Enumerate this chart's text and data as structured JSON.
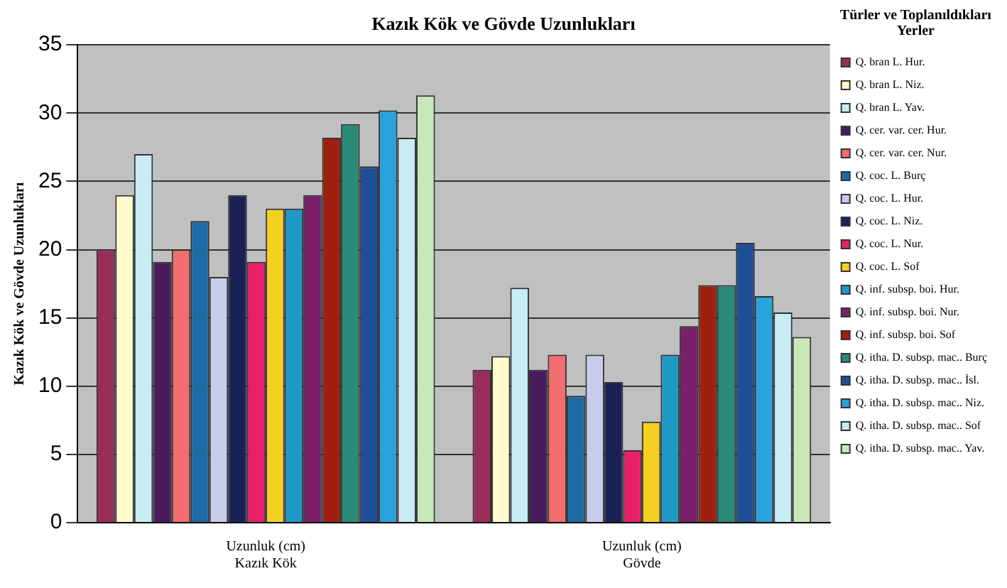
{
  "chart_data": {
    "type": "bar",
    "title": "Kazık Kök ve Gövde Uzunlukları",
    "ylabel": "Kazık Kök ve Gövde Uzunlukları",
    "legend_title": "Türler ve Toplanıldıkları Yerler",
    "categories": [
      "Uzunluk (cm)\nKazık Kök",
      "Uzunluk (cm)\nGövde"
    ],
    "ylim": [
      0,
      35
    ],
    "yticks": [
      0,
      5,
      10,
      15,
      20,
      25,
      30,
      35
    ],
    "grid": "y",
    "legend": "right",
    "series": [
      {
        "name": "Q. bran L. Hur.",
        "color": "#9b2d5a",
        "values": [
          20,
          11.2
        ]
      },
      {
        "name": "Q. bran L. Niz.",
        "color": "#fffbcc",
        "values": [
          24,
          12.2
        ]
      },
      {
        "name": "Q. bran L. Yav.",
        "color": "#c8ecf4",
        "values": [
          27,
          17.2
        ]
      },
      {
        "name": "Q. cer. var. cer. Hur.",
        "color": "#4a1a5e",
        "values": [
          19.1,
          11.2
        ]
      },
      {
        "name": "Q. cer. var. cer. Nur.",
        "color": "#f26d6d",
        "values": [
          20,
          12.3
        ]
      },
      {
        "name": "Q. coc. L. Burç",
        "color": "#1f6aa5",
        "values": [
          22.1,
          9.3
        ]
      },
      {
        "name": "Q. coc. L. Hur.",
        "color": "#c8ccec",
        "values": [
          18,
          12.3
        ]
      },
      {
        "name": "Q. coc. L. Niz.",
        "color": "#1a2255",
        "values": [
          24,
          10.3
        ]
      },
      {
        "name": "Q. coc. L. Nur.",
        "color": "#e8206a",
        "values": [
          19.1,
          5.3
        ]
      },
      {
        "name": "Q. coc. L. Sof",
        "color": "#f5d020",
        "values": [
          23,
          7.4
        ]
      },
      {
        "name": "Q. inf. subsp. boi. Hur.",
        "color": "#1f9ac8",
        "values": [
          23,
          12.3
        ]
      },
      {
        "name": "Q. inf. subsp. boi. Nur.",
        "color": "#7a1f6a",
        "values": [
          24,
          14.4
        ]
      },
      {
        "name": "Q. inf. subsp. boi. Sof",
        "color": "#a0200f",
        "values": [
          28.2,
          17.4
        ]
      },
      {
        "name": "Q. itha. D. subsp. mac.. Burç",
        "color": "#2a8a78",
        "values": [
          29.2,
          17.4
        ]
      },
      {
        "name": "Q. itha. D. subsp. mac.. İsl.",
        "color": "#1f4e98",
        "values": [
          26.1,
          20.5
        ]
      },
      {
        "name": "Q. itha. D. subsp. mac.. Niz.",
        "color": "#29a3dc",
        "values": [
          30.2,
          16.6
        ]
      },
      {
        "name": "Q. itha. D. subsp. mac.. Sof",
        "color": "#c8ecf4",
        "values": [
          28.2,
          15.4
        ]
      },
      {
        "name": "Q. itha. D. subsp. mac.. Yav.",
        "color": "#c8e8b8",
        "values": [
          31.3,
          13.6
        ]
      }
    ]
  }
}
